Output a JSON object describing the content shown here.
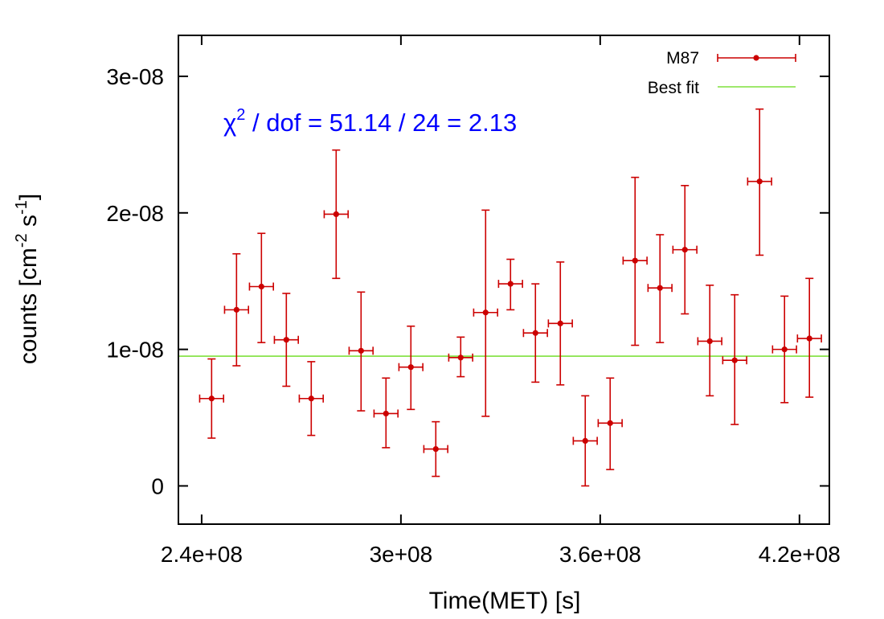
{
  "chart_data": {
    "type": "scatter",
    "xlabel": "Time(MET) [s]",
    "ylabel": {
      "prefix": "counts [cm",
      "sup1": "-2",
      "mid": " s",
      "sup2": "-1",
      "suffix": "]"
    },
    "xlim": [
      233000000,
      429000000
    ],
    "ylim": [
      -2.8e-09,
      3.3e-08
    ],
    "x_ticks": [
      {
        "value": 240000000,
        "label": "2.4e+08"
      },
      {
        "value": 300000000,
        "label": "3e+08"
      },
      {
        "value": 360000000,
        "label": "3.6e+08"
      },
      {
        "value": 420000000,
        "label": "4.2e+08"
      }
    ],
    "y_ticks": [
      {
        "value": 0,
        "label": "0"
      },
      {
        "value": 1e-08,
        "label": "1e-08"
      },
      {
        "value": 2e-08,
        "label": "2e-08"
      },
      {
        "value": 3e-08,
        "label": "3e-08"
      }
    ],
    "grid": false,
    "legend_position": "top-right",
    "annotation": {
      "chi_symbol": "χ",
      "sup": "2",
      "text": " / dof = 51.14 / 24 = 2.13",
      "color": "#0000ff"
    },
    "series": [
      {
        "name": "M87",
        "style": "points-errorbars",
        "color": "#cc0000",
        "x_err": 3600000,
        "points": [
          {
            "x": 243000000,
            "y": 6.4e-09,
            "ylo": 3.5e-09,
            "yhi": 9.3e-09
          },
          {
            "x": 250500000,
            "y": 1.29e-08,
            "ylo": 8.8e-09,
            "yhi": 1.7e-08
          },
          {
            "x": 258000000,
            "y": 1.46e-08,
            "ylo": 1.05e-08,
            "yhi": 1.85e-08
          },
          {
            "x": 265500000,
            "y": 1.07e-08,
            "ylo": 7.3e-09,
            "yhi": 1.41e-08
          },
          {
            "x": 273000000,
            "y": 6.4e-09,
            "ylo": 3.7e-09,
            "yhi": 9.1e-09
          },
          {
            "x": 280500000,
            "y": 1.99e-08,
            "ylo": 1.52e-08,
            "yhi": 2.46e-08
          },
          {
            "x": 288000000,
            "y": 9.9e-09,
            "ylo": 5.5e-09,
            "yhi": 1.42e-08
          },
          {
            "x": 295500000,
            "y": 5.3e-09,
            "ylo": 2.8e-09,
            "yhi": 7.9e-09
          },
          {
            "x": 303000000,
            "y": 8.7e-09,
            "ylo": 5.6e-09,
            "yhi": 1.17e-08
          },
          {
            "x": 310500000,
            "y": 2.7e-09,
            "ylo": 7e-10,
            "yhi": 4.7e-09
          },
          {
            "x": 318000000,
            "y": 9.4e-09,
            "ylo": 8e-09,
            "yhi": 1.09e-08
          },
          {
            "x": 325500000,
            "y": 1.27e-08,
            "ylo": 5.1e-09,
            "yhi": 2.02e-08
          },
          {
            "x": 333000000,
            "y": 1.48e-08,
            "ylo": 1.29e-08,
            "yhi": 1.66e-08
          },
          {
            "x": 340500000,
            "y": 1.12e-08,
            "ylo": 7.6e-09,
            "yhi": 1.48e-08
          },
          {
            "x": 348000000,
            "y": 1.19e-08,
            "ylo": 7.4e-09,
            "yhi": 1.64e-08
          },
          {
            "x": 355500000,
            "y": 3.3e-09,
            "ylo": 0.0,
            "yhi": 6.6e-09
          },
          {
            "x": 363000000,
            "y": 4.6e-09,
            "ylo": 1.2e-09,
            "yhi": 7.9e-09
          },
          {
            "x": 370500000,
            "y": 1.65e-08,
            "ylo": 1.03e-08,
            "yhi": 2.26e-08
          },
          {
            "x": 378000000,
            "y": 1.45e-08,
            "ylo": 1.05e-08,
            "yhi": 1.84e-08
          },
          {
            "x": 385500000,
            "y": 1.73e-08,
            "ylo": 1.26e-08,
            "yhi": 2.2e-08
          },
          {
            "x": 393000000,
            "y": 1.06e-08,
            "ylo": 6.6e-09,
            "yhi": 1.47e-08
          },
          {
            "x": 400500000,
            "y": 9.2e-09,
            "ylo": 4.5e-09,
            "yhi": 1.4e-08
          },
          {
            "x": 408000000,
            "y": 2.23e-08,
            "ylo": 1.69e-08,
            "yhi": 2.76e-08
          },
          {
            "x": 415500000,
            "y": 1e-08,
            "ylo": 6.1e-09,
            "yhi": 1.39e-08
          },
          {
            "x": 423000000,
            "y": 1.08e-08,
            "ylo": 6.5e-09,
            "yhi": 1.52e-08
          }
        ]
      },
      {
        "name": "Best fit",
        "style": "line",
        "color": "#7fe03c",
        "y_constant": 9.5e-09
      }
    ]
  }
}
